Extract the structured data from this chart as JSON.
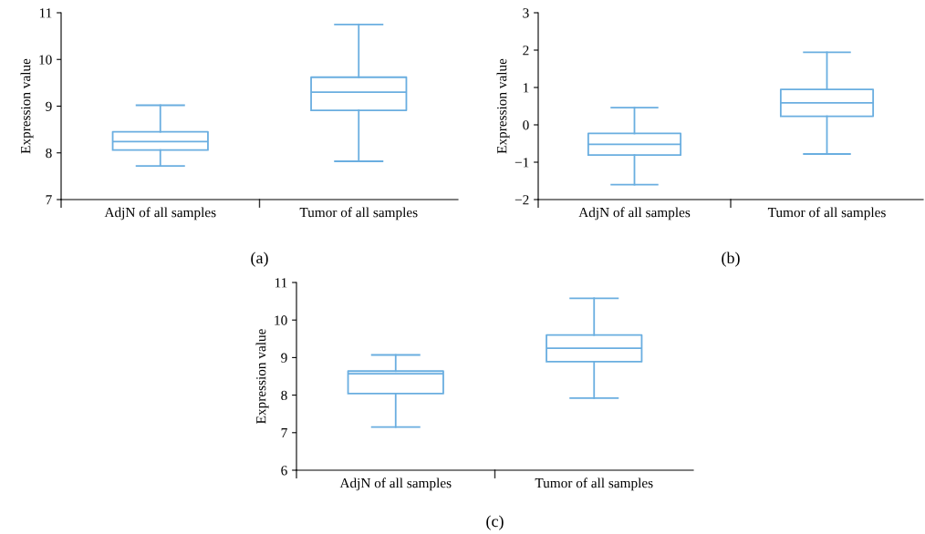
{
  "chart_data": [
    {
      "type": "box",
      "ylabel": "Expression value",
      "categories": [
        "AdjN of all samples",
        "Tumor of all samples"
      ],
      "color": "#6aaee0",
      "ylim": [
        7,
        11
      ],
      "yticks": [
        7,
        8,
        9,
        10,
        11
      ],
      "grid": false,
      "annotations": [
        "(a)"
      ],
      "boxes": [
        {
          "low": 7.72,
          "q1": 8.06,
          "median": 8.24,
          "q3": 8.45,
          "high": 9.02
        },
        {
          "low": 7.82,
          "q1": 8.91,
          "median": 9.3,
          "q3": 9.62,
          "high": 10.75
        }
      ]
    },
    {
      "type": "box",
      "ylabel": "Expression value",
      "categories": [
        "AdjN of all samples",
        "Tumor of all samples"
      ],
      "color": "#6aaee0",
      "ylim": [
        -2,
        3
      ],
      "yticks": [
        -2,
        -1,
        0,
        1,
        2,
        3
      ],
      "grid": false,
      "annotations": [
        "(b)"
      ],
      "boxes": [
        {
          "low": -1.6,
          "q1": -0.81,
          "median": -0.52,
          "q3": -0.23,
          "high": 0.46
        },
        {
          "low": -0.78,
          "q1": 0.23,
          "median": 0.59,
          "q3": 0.95,
          "high": 1.94
        }
      ]
    },
    {
      "type": "box",
      "ylabel": "Expression value",
      "categories": [
        "AdjN of all samples",
        "Tumor of all samples"
      ],
      "color": "#6aaee0",
      "ylim": [
        6,
        11
      ],
      "yticks": [
        6,
        7,
        8,
        9,
        10,
        11
      ],
      "grid": false,
      "annotations": [
        "(c)"
      ],
      "boxes": [
        {
          "low": 7.15,
          "q1": 8.04,
          "median": 8.57,
          "q3": 8.64,
          "high": 9.07
        },
        {
          "low": 7.92,
          "q1": 8.89,
          "median": 9.25,
          "q3": 9.6,
          "high": 10.58
        }
      ]
    }
  ]
}
